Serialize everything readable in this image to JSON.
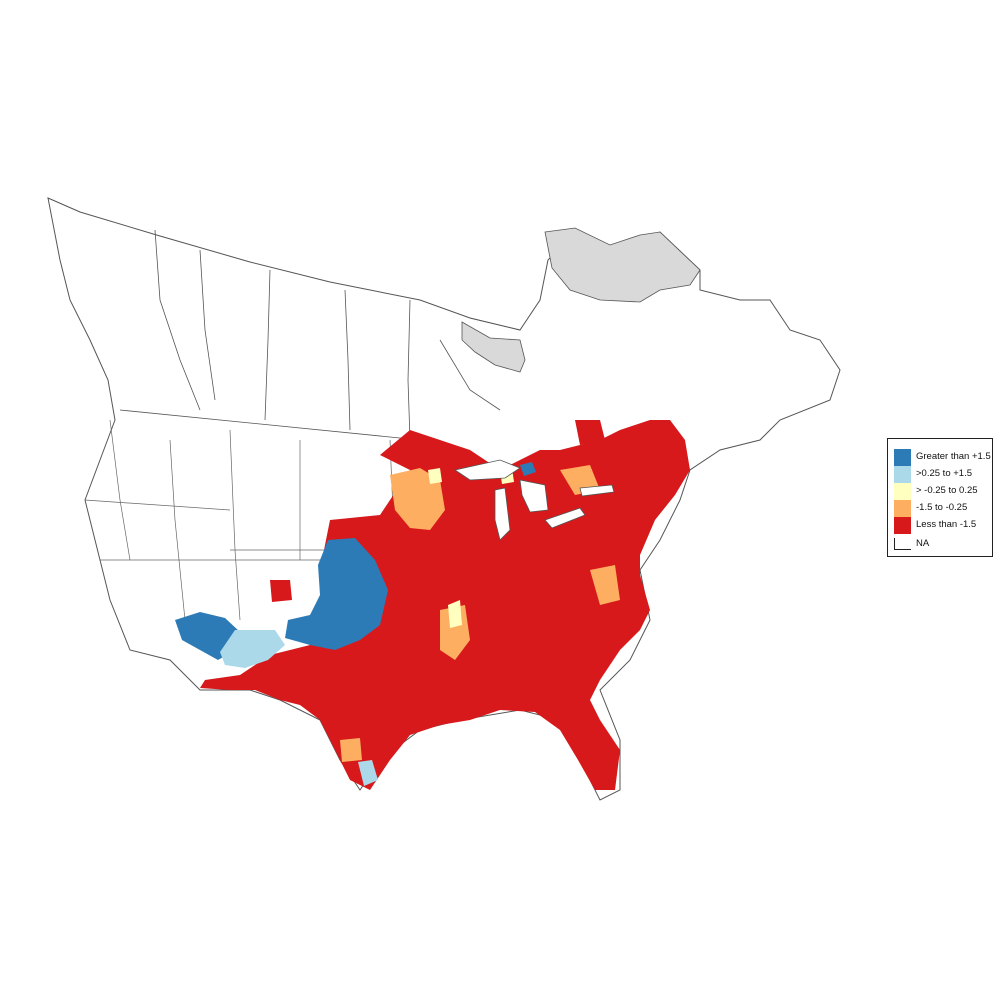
{
  "legend": {
    "items": [
      {
        "key": "gt15",
        "label": "Greater than +1.5",
        "color": "#2c7bb6"
      },
      {
        "key": "p025",
        "label": ">0.25 to +1.5",
        "color": "#abd9e9"
      },
      {
        "key": "z",
        "label": "> -0.25 to 0.25",
        "color": "#ffffbf"
      },
      {
        "key": "n15",
        "label": "-1.5 to -0.25",
        "color": "#fdae61"
      },
      {
        "key": "lt15",
        "label": "Less than -1.5",
        "color": "#d7191c"
      },
      {
        "key": "na",
        "label": "NA",
        "color": "#ffffff"
      }
    ]
  },
  "map_colors": {
    "boundary": "#555555",
    "no_data_region": "#d9d9d9",
    "land": "#ffffff"
  }
}
